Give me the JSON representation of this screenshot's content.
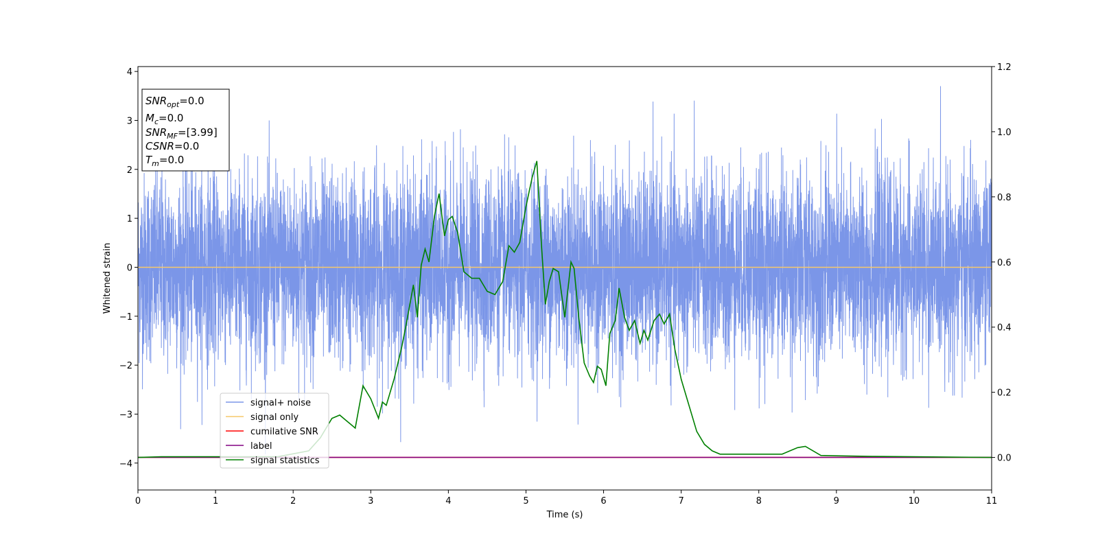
{
  "colors": {
    "noise": "#7b96e8",
    "signal_only": "#f6c86a",
    "cumulative_snr": "#ff0000",
    "label": "#800080",
    "statistics": "#008000"
  },
  "chart_data": {
    "type": "line",
    "xlabel": "Time (s)",
    "ylabel": "Whitened strain",
    "xlim": [
      0,
      11
    ],
    "ylim_left": [
      -4.55,
      4.1
    ],
    "ylim_right": [
      -0.1,
      1.2
    ],
    "x_ticks": [
      0,
      1,
      2,
      3,
      4,
      5,
      6,
      7,
      8,
      9,
      10,
      11
    ],
    "y_left_ticks": [
      -4,
      -3,
      -2,
      -1,
      0,
      1,
      2,
      3,
      4
    ],
    "y_right_ticks": [
      0.0,
      0.2,
      0.4,
      0.6,
      0.8,
      1.0,
      1.2
    ],
    "y_right_tick_labels": [
      "0.0",
      "0.2",
      "0.4",
      "0.6",
      "0.8",
      "1.0",
      "1.2"
    ],
    "y_left_tick_labels": [
      "−4",
      "−3",
      "−2",
      "−1",
      "0",
      "1",
      "2",
      "3",
      "4"
    ],
    "grid": false,
    "legend_placement": "lower-left",
    "legend": [
      {
        "name": "signal+ noise",
        "color_key": "noise"
      },
      {
        "name": "signal only",
        "color_key": "signal_only"
      },
      {
        "name": "cumilative SNR",
        "color_key": "cumulative_snr"
      },
      {
        "name": "label",
        "color_key": "label"
      },
      {
        "name": "signal statistics",
        "color_key": "statistics"
      }
    ],
    "noise_series": {
      "name": "signal+ noise",
      "axis": "left",
      "duration_s": 11,
      "typical_range": [
        -2.5,
        2.5
      ],
      "extreme_range": [
        -4.15,
        3.7
      ]
    },
    "signal_only_series": {
      "name": "signal only",
      "axis": "left",
      "x": [
        0,
        11
      ],
      "y": [
        0,
        0
      ]
    },
    "cumulative_snr_series": {
      "name": "cumilative SNR",
      "axis": "right",
      "x": [
        0,
        11
      ],
      "y": [
        0,
        0
      ]
    },
    "label_series": {
      "name": "label",
      "axis": "right",
      "x": [
        0,
        11
      ],
      "y": [
        0,
        0
      ]
    },
    "statistics_series": {
      "name": "signal statistics",
      "axis": "right",
      "x": [
        0,
        0.3,
        1.0,
        1.8,
        2.2,
        2.35,
        2.5,
        2.6,
        2.7,
        2.8,
        2.9,
        3.0,
        3.1,
        3.15,
        3.2,
        3.3,
        3.4,
        3.45,
        3.55,
        3.6,
        3.65,
        3.7,
        3.75,
        3.82,
        3.88,
        3.95,
        4.0,
        4.05,
        4.12,
        4.2,
        4.3,
        4.4,
        4.5,
        4.6,
        4.7,
        4.78,
        4.85,
        4.92,
        5.0,
        5.08,
        5.14,
        5.2,
        5.25,
        5.3,
        5.35,
        5.42,
        5.5,
        5.58,
        5.62,
        5.68,
        5.75,
        5.82,
        5.87,
        5.92,
        5.97,
        6.03,
        6.08,
        6.15,
        6.2,
        6.27,
        6.33,
        6.4,
        6.47,
        6.52,
        6.57,
        6.65,
        6.72,
        6.78,
        6.85,
        6.92,
        7.0,
        7.1,
        7.2,
        7.3,
        7.4,
        7.5,
        7.6,
        7.8,
        7.9,
        8.1,
        8.3,
        8.4,
        8.5,
        8.6,
        8.7,
        8.8,
        9.0,
        9.5,
        10.0,
        11.0
      ],
      "y": [
        0,
        0.002,
        0.002,
        0.002,
        0.02,
        0.06,
        0.12,
        0.13,
        0.11,
        0.09,
        0.22,
        0.18,
        0.12,
        0.17,
        0.16,
        0.24,
        0.34,
        0.4,
        0.53,
        0.43,
        0.59,
        0.64,
        0.6,
        0.74,
        0.81,
        0.68,
        0.73,
        0.74,
        0.69,
        0.57,
        0.55,
        0.55,
        0.51,
        0.5,
        0.54,
        0.65,
        0.63,
        0.66,
        0.77,
        0.86,
        0.91,
        0.65,
        0.47,
        0.54,
        0.58,
        0.57,
        0.43,
        0.6,
        0.58,
        0.43,
        0.29,
        0.25,
        0.23,
        0.28,
        0.27,
        0.22,
        0.38,
        0.42,
        0.52,
        0.43,
        0.39,
        0.42,
        0.35,
        0.39,
        0.36,
        0.42,
        0.44,
        0.41,
        0.44,
        0.33,
        0.24,
        0.16,
        0.08,
        0.04,
        0.02,
        0.01,
        0.01,
        0.01,
        0.01,
        0.01,
        0.01,
        0.02,
        0.03,
        0.034,
        0.02,
        0.006,
        0.005,
        0.003,
        0.002,
        0.0
      ]
    }
  },
  "info_box": {
    "snr_opt": {
      "main": "SNR",
      "sub": "opt",
      "value": "=0.0"
    },
    "mc": {
      "main": "M",
      "sub": "c",
      "value": "=0.0"
    },
    "snr_mf": {
      "main": "SNR",
      "sub": "MF",
      "value": "=[3.99]"
    },
    "csnr": {
      "main": "CSNR",
      "sub": "",
      "value": "=0.0"
    },
    "tm": {
      "main": "T",
      "sub": "m",
      "value": "=0.0"
    }
  }
}
